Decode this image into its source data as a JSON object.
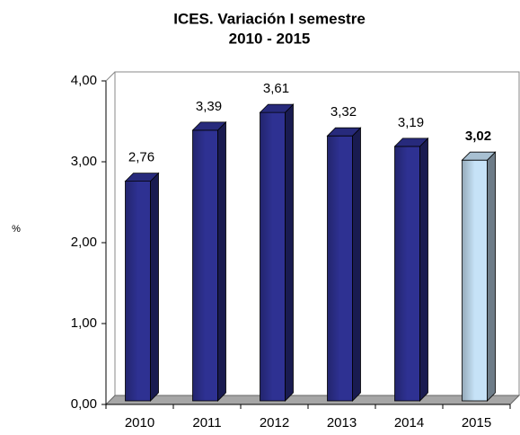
{
  "chart_data": {
    "type": "bar3d",
    "title": [
      "ICES. Variación I semestre",
      "2010 - 2015"
    ],
    "y_label": "%",
    "categories": [
      "2010",
      "2011",
      "2012",
      "2013",
      "2014",
      "2015"
    ],
    "values": [
      2.76,
      3.39,
      3.61,
      3.32,
      3.19,
      3.02
    ],
    "value_labels": [
      "2,76",
      "3,39",
      "3,61",
      "3,32",
      "3,19",
      "3,02"
    ],
    "colors": [
      "#2e3192",
      "#2e3192",
      "#2e3192",
      "#2e3192",
      "#2e3192",
      "#c6e2f7"
    ],
    "ylim": [
      0,
      4
    ],
    "yticks": [
      {
        "value": 0,
        "label": "0,00"
      },
      {
        "value": 1,
        "label": "1,00"
      },
      {
        "value": 2,
        "label": "2,00"
      },
      {
        "value": 3,
        "label": "3,00"
      },
      {
        "value": 4,
        "label": "4,00"
      }
    ]
  }
}
